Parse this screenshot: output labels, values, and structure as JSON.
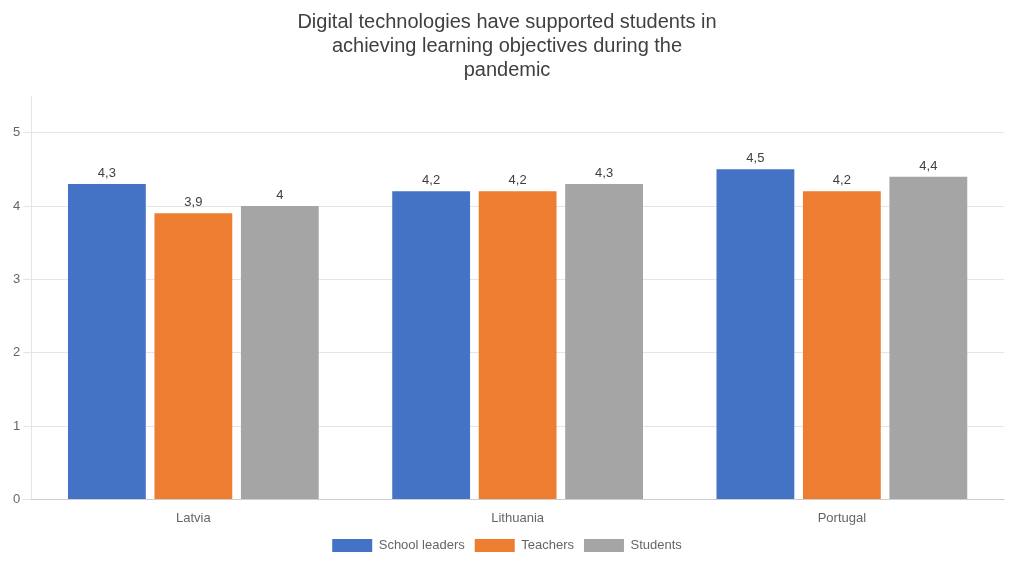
{
  "chart_data": {
    "type": "bar",
    "title": "Digital technologies have supported students in\nachieving learning objectives during the\npandemic",
    "categories": [
      "Latvia",
      "Lithuania",
      "Portugal"
    ],
    "series": [
      {
        "name": "School leaders",
        "color": "#4472C4",
        "values": [
          4.3,
          4.2,
          4.5
        ],
        "value_labels": [
          "4,3",
          "4,2",
          "4,5"
        ]
      },
      {
        "name": "Teachers",
        "color": "#ED7D31",
        "values": [
          3.9,
          4.2,
          4.2
        ],
        "value_labels": [
          "3,9",
          "4,2",
          "4,2"
        ]
      },
      {
        "name": "Students",
        "color": "#A5A5A5",
        "values": [
          4.0,
          4.3,
          4.4
        ],
        "value_labels": [
          "4",
          "4,3",
          "4,4"
        ]
      }
    ],
    "ylim": [
      0,
      5.5
    ],
    "yticks": [
      0,
      1,
      2,
      3,
      4,
      5
    ],
    "grid": true,
    "legend": "bottom",
    "data_labels": true
  }
}
